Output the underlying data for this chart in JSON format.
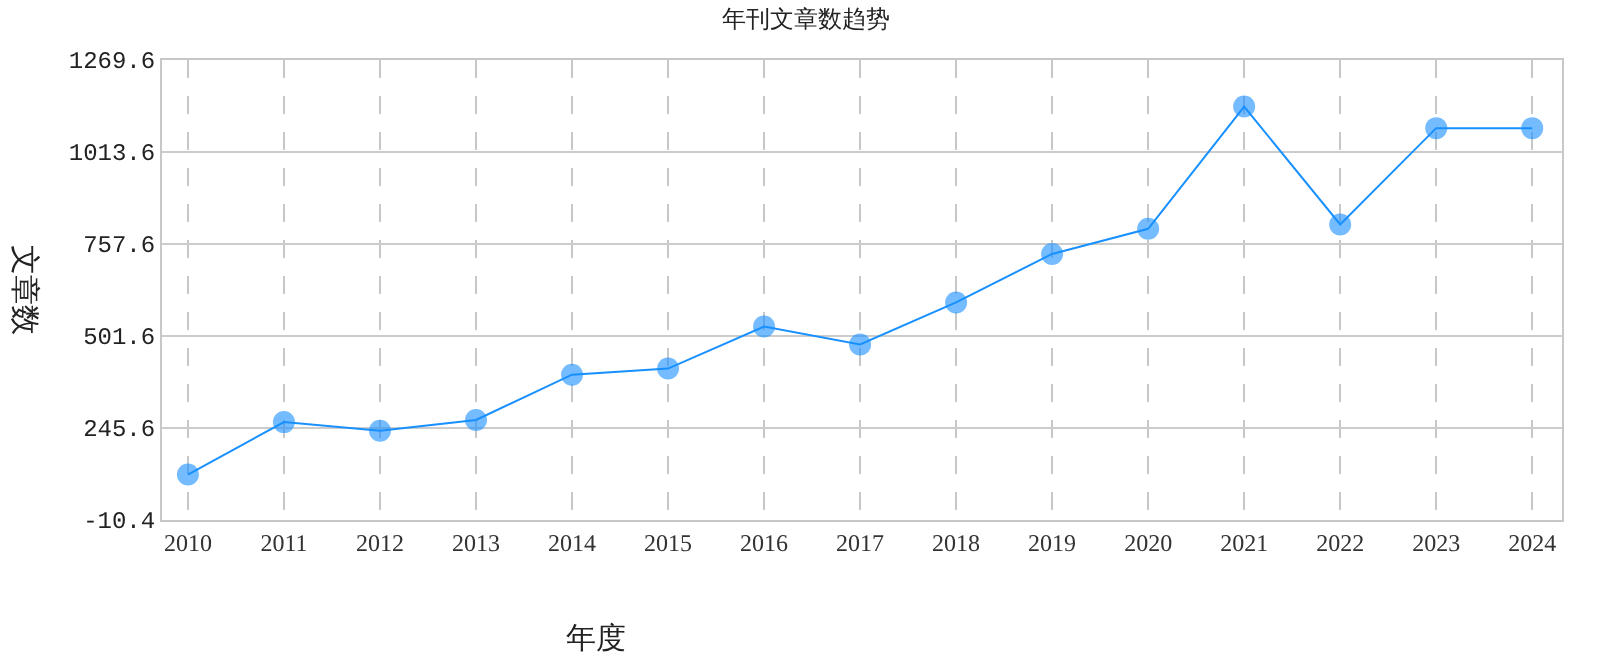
{
  "chart_data": {
    "type": "line",
    "title": "年刊文章数趋势",
    "xlabel": "年度",
    "ylabel": "文章数",
    "categories": [
      "2010",
      "2011",
      "2012",
      "2013",
      "2014",
      "2015",
      "2016",
      "2017",
      "2018",
      "2019",
      "2020",
      "2021",
      "2022",
      "2023",
      "2024"
    ],
    "series": [
      {
        "color": "#1890ff",
        "values": [
          116,
          262,
          238,
          268,
          394,
          411,
          528,
          478,
          595,
          730,
          800,
          1140,
          812,
          1080,
          1080
        ]
      }
    ],
    "ylim": [
      -10.4,
      1269.6
    ],
    "yticks": [
      {
        "value": -10.4,
        "label": "-10.4"
      },
      {
        "value": 245.6,
        "label": "245.6"
      },
      {
        "value": 501.6,
        "label": "501.6"
      },
      {
        "value": 757.6,
        "label": "757.6"
      },
      {
        "value": 1013.6,
        "label": "1013.6"
      },
      {
        "value": 1269.6,
        "label": "1269.6"
      }
    ],
    "grid": true,
    "marker": "circle",
    "line_style": "solid"
  }
}
